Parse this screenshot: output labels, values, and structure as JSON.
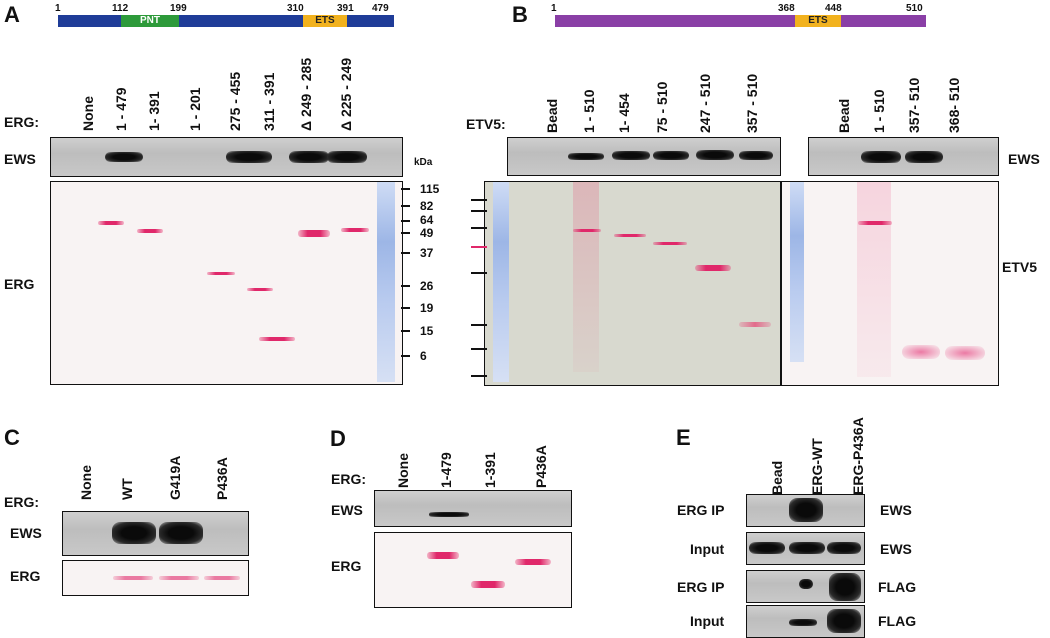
{
  "panel_labels": [
    "A",
    "B",
    "C",
    "D",
    "E"
  ],
  "panelA": {
    "domain_bar": {
      "start": "1",
      "pnt_start": "112",
      "pnt_label": "PNT",
      "pnt_end": "199",
      "ets_start": "310",
      "ets_label": "ETS",
      "ets_end": "391",
      "end": "479",
      "colors": {
        "bar": "#1f3c98",
        "pnt": "#2d9a3a",
        "ets": "#f2b21e"
      }
    },
    "row_label": "ERG:",
    "lanes": [
      "None",
      "1 - 479",
      "1- 391",
      "1 - 201",
      "275 - 455",
      "311 - 391",
      "Δ 249 - 285",
      "Δ 225 - 249"
    ],
    "blot_labels": {
      "ews": "EWS",
      "erg": "ERG",
      "kda": "kDa"
    },
    "markers": [
      "115",
      "82",
      "64",
      "49",
      "37",
      "26",
      "19",
      "15",
      "6"
    ]
  },
  "panelB": {
    "domain_bar": {
      "start": "1",
      "ets_start": "368",
      "ets_label": "ETS",
      "ets_end": "448",
      "end": "510",
      "colors": {
        "bar": "#8a3fa6",
        "ets": "#f2b21e"
      }
    },
    "row_label": "ETV5:",
    "lanes_left": [
      "Bead",
      "1 - 510",
      "1- 454",
      "75 - 510",
      "247 - 510",
      "357 - 510"
    ],
    "lanes_right": [
      "Bead",
      "1 - 510",
      "357- 510",
      "368- 510"
    ],
    "blot_labels": {
      "ews": "EWS",
      "etv5": "ETV5"
    }
  },
  "panelC": {
    "row_label": "ERG:",
    "lanes": [
      "None",
      "WT",
      "G419A",
      "P436A"
    ],
    "blot_labels": {
      "ews": "EWS",
      "erg": "ERG"
    }
  },
  "panelD": {
    "row_label": "ERG:",
    "lanes": [
      "None",
      "1-479",
      "1-391",
      "P436A"
    ],
    "blot_labels": {
      "ews": "EWS",
      "erg": "ERG"
    }
  },
  "panelE": {
    "lanes": [
      "Bead",
      "ERG-WT",
      "ERG-P436A"
    ],
    "rows": [
      {
        "left": "ERG IP",
        "right": "EWS"
      },
      {
        "left": "Input",
        "right": "EWS"
      },
      {
        "left": "ERG IP",
        "right": "FLAG"
      },
      {
        "left": "Input",
        "right": "FLAG"
      }
    ]
  }
}
